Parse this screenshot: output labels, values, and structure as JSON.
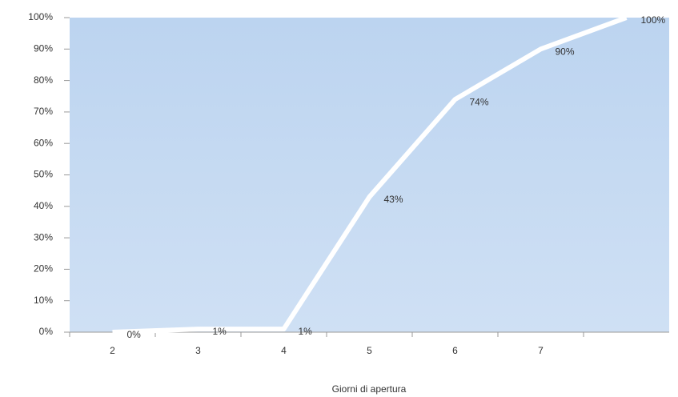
{
  "chart_data": {
    "type": "line",
    "x_label": "Giorni di apertura",
    "categories": [
      "2",
      "3",
      "4",
      "5",
      "6",
      "7",
      null
    ],
    "series": [
      {
        "name": null,
        "color": "#ffffff",
        "values": [
          0,
          1,
          1,
          43,
          74,
          90,
          100
        ],
        "value_labels": [
          "0%",
          "1%",
          "1%",
          "43%",
          "74%",
          "90%",
          "100%"
        ]
      }
    ],
    "ylim": [
      0,
      100
    ],
    "yticks": [
      {
        "value": 0,
        "label": "0%"
      },
      {
        "value": 10,
        "label": "10%"
      },
      {
        "value": 20,
        "label": "20%"
      },
      {
        "value": 30,
        "label": "30%"
      },
      {
        "value": 40,
        "label": "40%"
      },
      {
        "value": 50,
        "label": "50%"
      },
      {
        "value": 60,
        "label": "60%"
      },
      {
        "value": 70,
        "label": "70%"
      },
      {
        "value": 80,
        "label": "80%"
      },
      {
        "value": 90,
        "label": "90%"
      },
      {
        "value": 100,
        "label": "100%"
      }
    ],
    "grid": false
  }
}
